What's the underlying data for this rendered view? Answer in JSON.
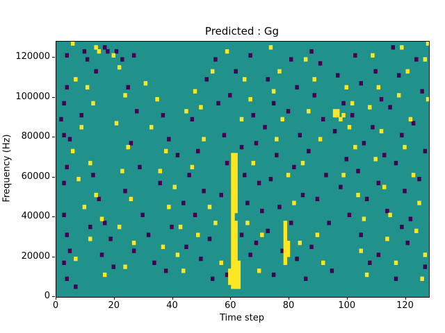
{
  "title": "Predicted : Gg",
  "xlabel": "Time step",
  "ylabel": "Frequency (Hz)",
  "chart_data": {
    "type": "heatmap",
    "title": "Predicted : Gg",
    "xlabel": "Time step",
    "ylabel": "Frequency (Hz)",
    "xlim": [
      0,
      128
    ],
    "ylim": [
      0,
      128000
    ],
    "x_ticks": [
      0,
      20,
      40,
      60,
      80,
      100,
      120
    ],
    "y_ticks": [
      0,
      20000,
      40000,
      60000,
      80000,
      100000,
      120000
    ],
    "legend": "none",
    "grid": false,
    "colors": {
      "background_value": "#21918c",
      "high_value": "#fde725",
      "low_value": "#440154"
    },
    "cell": {
      "t_width": 1.3,
      "f_height": 2200
    },
    "yellow_runs": [
      {
        "t": 60,
        "f_from": 4000,
        "f_to": 70000
      },
      {
        "t": 61,
        "f_from": 4000,
        "f_to": 36000
      },
      {
        "t": 61,
        "f_from": 42000,
        "f_to": 70000
      },
      {
        "t": 62,
        "f_from": 4000,
        "f_to": 16000
      },
      {
        "t": 59,
        "f_from": 6000,
        "f_to": 12000
      },
      {
        "t": 78,
        "f_from": 16000,
        "f_to": 36000
      },
      {
        "t": 79,
        "f_from": 20000,
        "f_to": 26000
      }
    ],
    "yellow_cells": [
      [
        5,
        126000
      ],
      [
        13,
        124000
      ],
      [
        14,
        122000
      ],
      [
        19,
        120000
      ],
      [
        6,
        108000
      ],
      [
        10,
        104000
      ],
      [
        12,
        96000
      ],
      [
        8,
        84000
      ],
      [
        5,
        72000
      ],
      [
        11,
        66000
      ],
      [
        7,
        58000
      ],
      [
        13,
        50000
      ],
      [
        9,
        44000
      ],
      [
        15,
        38000
      ],
      [
        11,
        28000
      ],
      [
        6,
        18000
      ],
      [
        16,
        10000
      ],
      [
        21,
        114000
      ],
      [
        23,
        100000
      ],
      [
        20,
        86000
      ],
      [
        24,
        74000
      ],
      [
        22,
        62000
      ],
      [
        25,
        48000
      ],
      [
        21,
        34000
      ],
      [
        26,
        26000
      ],
      [
        23,
        14000
      ],
      [
        30,
        106000
      ],
      [
        34,
        98000
      ],
      [
        32,
        84000
      ],
      [
        37,
        72000
      ],
      [
        35,
        62000
      ],
      [
        40,
        54000
      ],
      [
        38,
        44000
      ],
      [
        42,
        34000
      ],
      [
        36,
        24000
      ],
      [
        44,
        92000
      ],
      [
        47,
        102000
      ],
      [
        43,
        12000
      ],
      [
        48,
        30000
      ],
      [
        41,
        20000
      ],
      [
        46,
        64000
      ],
      [
        50,
        78000
      ],
      [
        52,
        44000
      ],
      [
        49,
        94000
      ],
      [
        54,
        36000
      ],
      [
        56,
        16000
      ],
      [
        53,
        112000
      ],
      [
        58,
        122000
      ],
      [
        64,
        108000
      ],
      [
        66,
        98000
      ],
      [
        63,
        88000
      ],
      [
        67,
        66000
      ],
      [
        65,
        36000
      ],
      [
        69,
        12000
      ],
      [
        70,
        30000
      ],
      [
        73,
        124000
      ],
      [
        76,
        112000
      ],
      [
        74,
        102000
      ],
      [
        77,
        88000
      ],
      [
        75,
        78000
      ],
      [
        79,
        60000
      ],
      [
        81,
        46000
      ],
      [
        83,
        26000
      ],
      [
        85,
        118000
      ],
      [
        88,
        108000
      ],
      [
        86,
        92000
      ],
      [
        90,
        78000
      ],
      [
        84,
        66000
      ],
      [
        89,
        30000
      ],
      [
        91,
        16000
      ],
      [
        95,
        92000
      ],
      [
        96,
        92000
      ],
      [
        95,
        90000
      ],
      [
        96,
        90000
      ],
      [
        97,
        88000
      ],
      [
        98,
        90000
      ],
      [
        99,
        104000
      ],
      [
        101,
        96000
      ],
      [
        100,
        84000
      ],
      [
        102,
        74000
      ],
      [
        98,
        60000
      ],
      [
        103,
        50000
      ],
      [
        105,
        38000
      ],
      [
        104,
        22000
      ],
      [
        106,
        10000
      ],
      [
        108,
        120000
      ],
      [
        110,
        104000
      ],
      [
        107,
        94000
      ],
      [
        111,
        82000
      ],
      [
        109,
        68000
      ],
      [
        112,
        54000
      ],
      [
        114,
        40000
      ],
      [
        113,
        28000
      ],
      [
        116,
        16000
      ],
      [
        118,
        124000
      ],
      [
        120,
        112000
      ],
      [
        117,
        100000
      ],
      [
        121,
        88000
      ],
      [
        119,
        74000
      ],
      [
        122,
        60000
      ],
      [
        124,
        46000
      ],
      [
        123,
        32000
      ],
      [
        126,
        20000
      ],
      [
        125,
        8000
      ],
      [
        127,
        126000
      ],
      [
        127,
        98000
      ],
      [
        126,
        118000
      ]
    ],
    "dark_cells": [
      [
        3,
        120000
      ],
      [
        9,
        122000
      ],
      [
        10,
        118000
      ],
      [
        16,
        124000
      ],
      [
        17,
        122000
      ],
      [
        20,
        122000
      ],
      [
        13,
        112000
      ],
      [
        22,
        118000
      ],
      [
        26,
        120000
      ],
      [
        24,
        104000
      ],
      [
        3,
        104000
      ],
      [
        2,
        96000
      ],
      [
        1,
        88000
      ],
      [
        2,
        80000
      ],
      [
        4,
        78000
      ],
      [
        8,
        90000
      ],
      [
        3,
        64000
      ],
      [
        2,
        56000
      ],
      [
        12,
        60000
      ],
      [
        14,
        48000
      ],
      [
        2,
        40000
      ],
      [
        11,
        34000
      ],
      [
        16,
        36000
      ],
      [
        3,
        30000
      ],
      [
        18,
        28000
      ],
      [
        15,
        20000
      ],
      [
        4,
        22000
      ],
      [
        2,
        16000
      ],
      [
        19,
        14000
      ],
      [
        3,
        8000
      ],
      [
        6,
        4000
      ],
      [
        27,
        92000
      ],
      [
        25,
        76000
      ],
      [
        28,
        64000
      ],
      [
        23,
        52000
      ],
      [
        29,
        40000
      ],
      [
        31,
        30000
      ],
      [
        26,
        22000
      ],
      [
        33,
        16000
      ],
      [
        36,
        90000
      ],
      [
        38,
        78000
      ],
      [
        41,
        70000
      ],
      [
        35,
        56000
      ],
      [
        43,
        46000
      ],
      [
        39,
        34000
      ],
      [
        44,
        24000
      ],
      [
        37,
        12000
      ],
      [
        46,
        88000
      ],
      [
        48,
        72000
      ],
      [
        45,
        60000
      ],
      [
        50,
        52000
      ],
      [
        47,
        40000
      ],
      [
        52,
        28000
      ],
      [
        49,
        18000
      ],
      [
        53,
        8000
      ],
      [
        55,
        96000
      ],
      [
        51,
        108000
      ],
      [
        54,
        118000
      ],
      [
        57,
        80000
      ],
      [
        58,
        66000
      ],
      [
        56,
        50000
      ],
      [
        63,
        74000
      ],
      [
        64,
        60000
      ],
      [
        65,
        46000
      ],
      [
        63,
        30000
      ],
      [
        66,
        20000
      ],
      [
        58,
        10000
      ],
      [
        67,
        90000
      ],
      [
        68,
        76000
      ],
      [
        69,
        56000
      ],
      [
        70,
        42000
      ],
      [
        68,
        26000
      ],
      [
        66,
        120000
      ],
      [
        61,
        112000
      ],
      [
        59,
        100000
      ],
      [
        72,
        108000
      ],
      [
        74,
        96000
      ],
      [
        71,
        84000
      ],
      [
        75,
        70000
      ],
      [
        73,
        58000
      ],
      [
        76,
        44000
      ],
      [
        72,
        32000
      ],
      [
        77,
        22000
      ],
      [
        74,
        10000
      ],
      [
        80,
        118000
      ],
      [
        82,
        104000
      ],
      [
        79,
        92000
      ],
      [
        83,
        80000
      ],
      [
        81,
        64000
      ],
      [
        84,
        50000
      ],
      [
        80,
        36000
      ],
      [
        82,
        18000
      ],
      [
        85,
        8000
      ],
      [
        87,
        122000
      ],
      [
        90,
        116000
      ],
      [
        88,
        100000
      ],
      [
        91,
        88000
      ],
      [
        86,
        72000
      ],
      [
        92,
        60000
      ],
      [
        89,
        48000
      ],
      [
        93,
        36000
      ],
      [
        87,
        24000
      ],
      [
        94,
        12000
      ],
      [
        96,
        110000
      ],
      [
        98,
        96000
      ],
      [
        95,
        82000
      ],
      [
        99,
        68000
      ],
      [
        97,
        54000
      ],
      [
        100,
        40000
      ],
      [
        102,
        120000
      ],
      [
        104,
        106000
      ],
      [
        101,
        90000
      ],
      [
        105,
        76000
      ],
      [
        103,
        62000
      ],
      [
        106,
        48000
      ],
      [
        104,
        30000
      ],
      [
        107,
        16000
      ],
      [
        109,
        112000
      ],
      [
        111,
        98000
      ],
      [
        108,
        84000
      ],
      [
        112,
        70000
      ],
      [
        110,
        56000
      ],
      [
        113,
        42000
      ],
      [
        115,
        124000
      ],
      [
        117,
        110000
      ],
      [
        114,
        94000
      ],
      [
        118,
        80000
      ],
      [
        116,
        66000
      ],
      [
        119,
        52000
      ],
      [
        121,
        38000
      ],
      [
        123,
        118000
      ],
      [
        125,
        102000
      ],
      [
        122,
        86000
      ],
      [
        126,
        72000
      ],
      [
        124,
        58000
      ],
      [
        120,
        26000
      ],
      [
        126,
        14000
      ],
      [
        118,
        34000
      ],
      [
        110,
        20000
      ],
      [
        116,
        8000
      ]
    ]
  }
}
